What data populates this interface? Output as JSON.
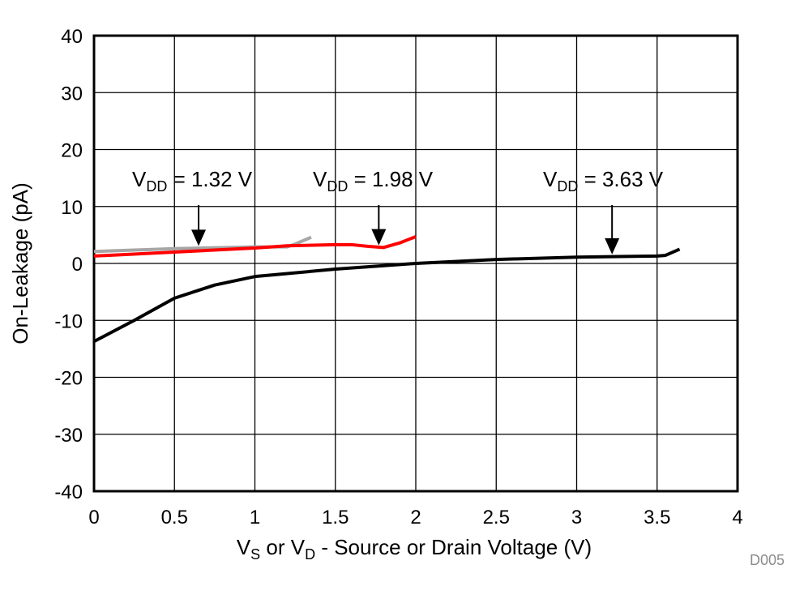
{
  "chart_data": {
    "type": "line",
    "xlabel": {
      "parts": [
        "V",
        "S",
        " or V",
        "D",
        " - Source or Drain Voltage (V)"
      ]
    },
    "ylabel": "On-Leakage (pA)",
    "xlim": [
      0,
      4
    ],
    "ylim": [
      -40,
      40
    ],
    "xticks": [
      0,
      0.5,
      1,
      1.5,
      2,
      2.5,
      3,
      3.5,
      4
    ],
    "xtick_labels": [
      "0",
      "0.5",
      "1",
      "1.5",
      "2",
      "2.5",
      "3",
      "3.5",
      "4"
    ],
    "yticks": [
      -40,
      -30,
      -20,
      -10,
      0,
      10,
      20,
      30,
      40
    ],
    "ytick_labels": [
      "-40",
      "-30",
      "-20",
      "-10",
      "0",
      "10",
      "20",
      "30",
      "40"
    ],
    "grid": true,
    "footnote": "D005",
    "series": [
      {
        "color": "#a6a6a6",
        "x": [
          0,
          0.5,
          1.0,
          1.2,
          1.25,
          1.35
        ],
        "y": [
          2.1,
          2.6,
          2.9,
          2.9,
          3.4,
          4.6
        ]
      },
      {
        "color": "#ff0000",
        "x": [
          0,
          0.5,
          1.0,
          1.2,
          1.5,
          1.6,
          1.7,
          1.8,
          1.9,
          2.0
        ],
        "y": [
          1.3,
          2.0,
          2.7,
          3.1,
          3.3,
          3.3,
          3.0,
          2.8,
          3.6,
          4.7
        ]
      },
      {
        "color": "#000000",
        "x": [
          0,
          0.25,
          0.5,
          0.75,
          1.0,
          1.5,
          2.0,
          2.5,
          3.0,
          3.5,
          3.55,
          3.64
        ],
        "y": [
          -13.7,
          -10,
          -6.1,
          -3.8,
          -2.3,
          -1.0,
          0,
          0.7,
          1.1,
          1.3,
          1.4,
          2.5
        ]
      }
    ],
    "annotations": [
      {
        "prefix": "V",
        "sub": "DD",
        "suffix": " = 1.32 V",
        "arrow_x": 0.65,
        "arrow_y": 2.8
      },
      {
        "prefix": "V",
        "sub": "DD",
        "suffix": " = 1.98 V",
        "arrow_x": 1.77,
        "arrow_y": 2.9
      },
      {
        "prefix": "V",
        "sub": "DD",
        "suffix": " = 3.63 V",
        "arrow_x": 3.22,
        "arrow_y": 1.3
      }
    ]
  }
}
